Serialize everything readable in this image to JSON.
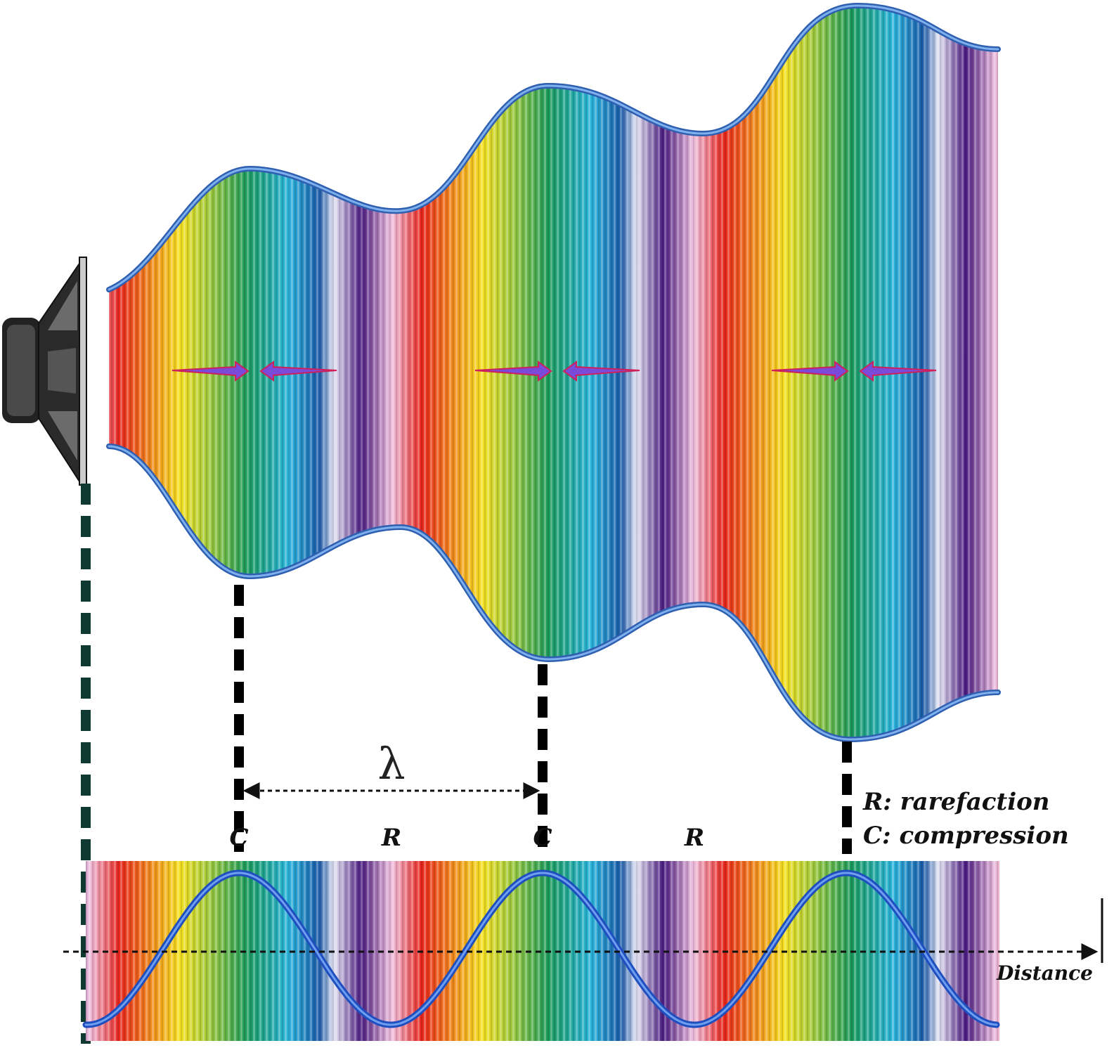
{
  "lambda": "λ",
  "markers": [
    "C",
    "R",
    "C",
    "R"
  ],
  "legend": [
    "R: rarefaction",
    "C: compression"
  ],
  "axis": "Distance"
}
